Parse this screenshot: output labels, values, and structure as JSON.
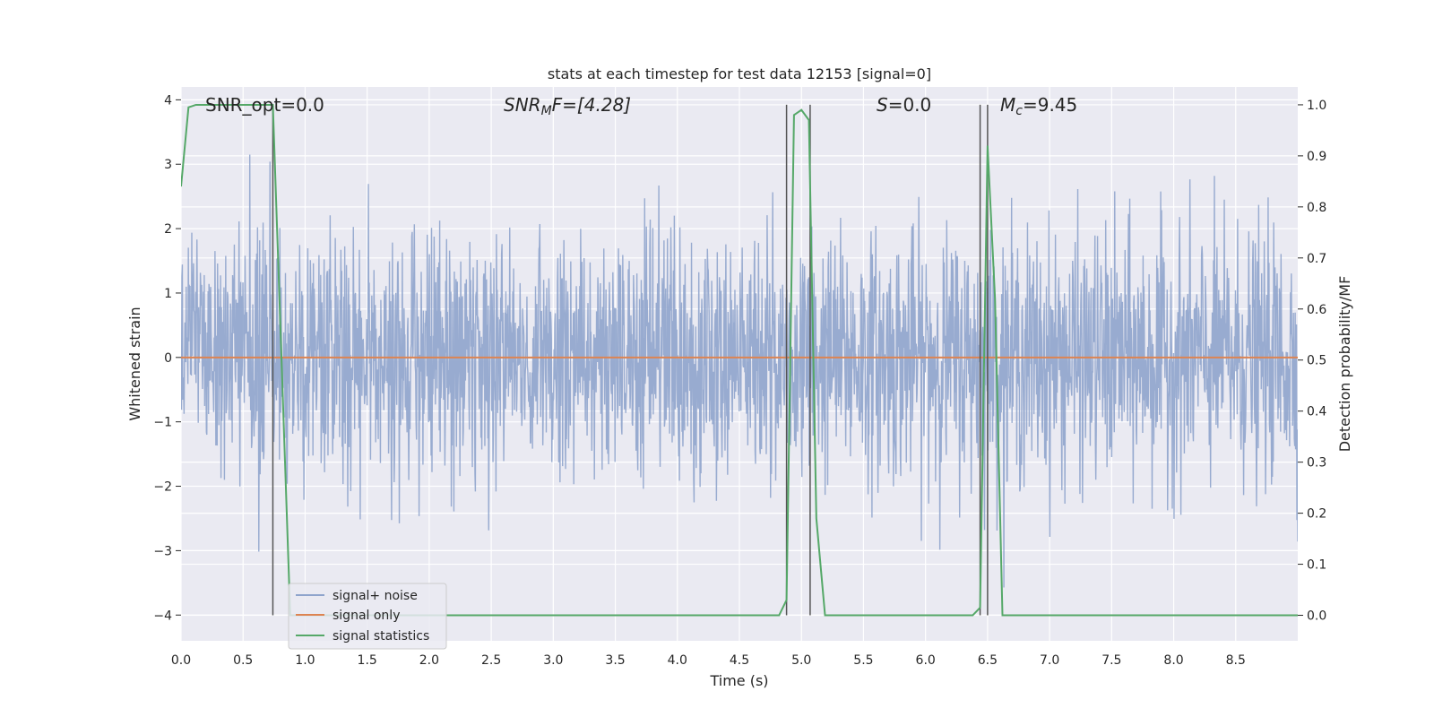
{
  "chart_data": {
    "type": "line",
    "title": "stats at each timestep for test data 12153 [signal=0]",
    "xlabel": "Time (s)",
    "ylabel": "Whitened strain",
    "ylabel_right": "Detection probability/MF",
    "xlim": [
      0,
      9.0
    ],
    "ylim": [
      -4.4,
      4.2
    ],
    "ylim_right": [
      -0.05,
      1.035
    ],
    "x_ticks": [
      "0.0",
      "0.5",
      "1.0",
      "1.5",
      "2.0",
      "2.5",
      "3.0",
      "3.5",
      "4.0",
      "4.5",
      "5.0",
      "5.5",
      "6.0",
      "6.5",
      "7.0",
      "7.5",
      "8.0",
      "8.5"
    ],
    "x_tick_values": [
      0,
      0.5,
      1,
      1.5,
      2,
      2.5,
      3,
      3.5,
      4,
      4.5,
      5,
      5.5,
      6,
      6.5,
      7,
      7.5,
      8,
      8.5
    ],
    "y_ticks": [
      "−4",
      "−3",
      "−2",
      "−1",
      "0",
      "1",
      "2",
      "3",
      "4"
    ],
    "y_tick_values": [
      -4,
      -3,
      -2,
      -1,
      0,
      1,
      2,
      3,
      4
    ],
    "y_ticks_right": [
      "0.0",
      "0.1",
      "0.2",
      "0.3",
      "0.4",
      "0.5",
      "0.6",
      "0.7",
      "0.8",
      "0.9",
      "1.0"
    ],
    "y_tick_values_right": [
      0,
      0.1,
      0.2,
      0.3,
      0.4,
      0.5,
      0.6,
      0.7,
      0.8,
      0.9,
      1.0
    ],
    "grid": true,
    "legend_position": "lower-left",
    "annotations": {
      "snr_opt": "SNR_opt=0.0",
      "snr_mf_base": "SNR",
      "snr_mf_sub": "M",
      "snr_mf_rest": "F=[4.28]",
      "s_var": "S",
      "s_rest": "=0.0",
      "mc_var": "M",
      "mc_sub": "c",
      "mc_rest": "=9.45"
    },
    "vertical_lines_x": [
      0.74,
      4.88,
      5.07,
      6.44,
      6.5
    ],
    "series": [
      {
        "name": "signal+ noise",
        "color": "#8fa4cc",
        "description_values": "whitened noise, roughly within ±1.5 with spikes up to ±3.8",
        "noise_seed": 12153
      },
      {
        "name": "signal only",
        "color": "#dd8452",
        "x": [
          0,
          9.0
        ],
        "y": [
          0,
          0
        ]
      },
      {
        "name": "signal statistics",
        "color": "#55a868",
        "axis": "right",
        "x": [
          0,
          0.06,
          0.12,
          0.6,
          0.73,
          0.74,
          0.88,
          4.82,
          4.88,
          4.94,
          5.0,
          5.06,
          5.12,
          5.19,
          6.38,
          6.44,
          6.5,
          6.56,
          6.62,
          9.0
        ],
        "y": [
          0.84,
          0.995,
          1.0,
          1.0,
          1.0,
          1.0,
          0.0,
          0.0,
          0.03,
          0.98,
          0.99,
          0.97,
          0.19,
          0.0,
          0.0,
          0.015,
          0.92,
          0.62,
          0.0,
          0.0
        ]
      }
    ]
  }
}
